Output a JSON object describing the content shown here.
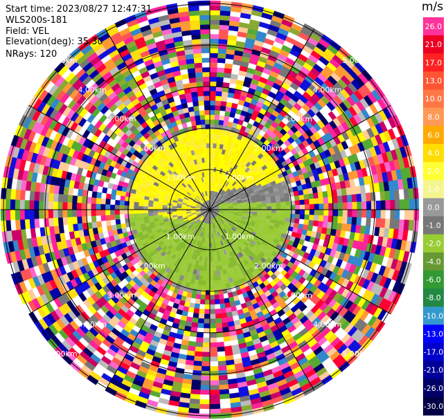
{
  "header": {
    "start_time": "Start time: 2023/08/27 12:47:31",
    "instrument": "WLS200s-181",
    "field": "Field: VEL",
    "elevation": "Elevation(deg): 35.30",
    "nrays": "NRays: 120"
  },
  "colorbar": {
    "unit": "m/s",
    "levels": [
      {
        "label": "26.0",
        "color": "#ff3399"
      },
      {
        "label": "21.0",
        "color": "#ee0022"
      },
      {
        "label": "17.0",
        "color": "#ff2222"
      },
      {
        "label": "13.0",
        "color": "#ff5533"
      },
      {
        "label": "10.0",
        "color": "#ff7744"
      },
      {
        "label": "8.0",
        "color": "#ff9955"
      },
      {
        "label": "6.0",
        "color": "#ffaa00"
      },
      {
        "label": "4.0",
        "color": "#ffdd00"
      },
      {
        "label": "2.0",
        "color": "#ffff33"
      },
      {
        "label": "1.0",
        "color": "#f5f590"
      },
      {
        "label": "0.0",
        "color": "#999999"
      },
      {
        "label": "-1.0",
        "color": "#777777"
      },
      {
        "label": "-2.0",
        "color": "#99cc33"
      },
      {
        "label": "-4.0",
        "color": "#669933"
      },
      {
        "label": "-6.0",
        "color": "#339933"
      },
      {
        "label": "-8.0",
        "color": "#228844"
      },
      {
        "label": "-10.0",
        "color": "#3399cc"
      },
      {
        "label": "-13.0",
        "color": "#0000ff"
      },
      {
        "label": "-17.0",
        "color": "#0000cc"
      },
      {
        "label": "-21.0",
        "color": "#000099"
      },
      {
        "label": "-26.0",
        "color": "#000066"
      },
      {
        "label": "-30.0",
        "color": "#000044"
      }
    ]
  },
  "ring_labels": [
    "1.00km",
    "2.00km",
    "3.00km",
    "4.00km",
    "5.00km"
  ],
  "colors": {
    "noise": [
      "#ff2299",
      "#ff0033",
      "#ff5555",
      "#ffff00",
      "#ffdd11",
      "#0000aa",
      "#000066",
      "#1111dd",
      "#88aa33",
      "#55aa33",
      "#bbbbbb",
      "#777777",
      "#ff66cc",
      "#ff9933",
      "#ffffff",
      "#3388cc",
      "#cc0066",
      "#ffcc99"
    ],
    "positive": [
      "#ffff00",
      "#fff200",
      "#ffef33"
    ],
    "near_zero": [
      "#8a8a8a",
      "#9a9a9a",
      "#7a7a7a"
    ],
    "negative": [
      "#99cc33",
      "#88bb33",
      "#a0cc44"
    ]
  }
}
